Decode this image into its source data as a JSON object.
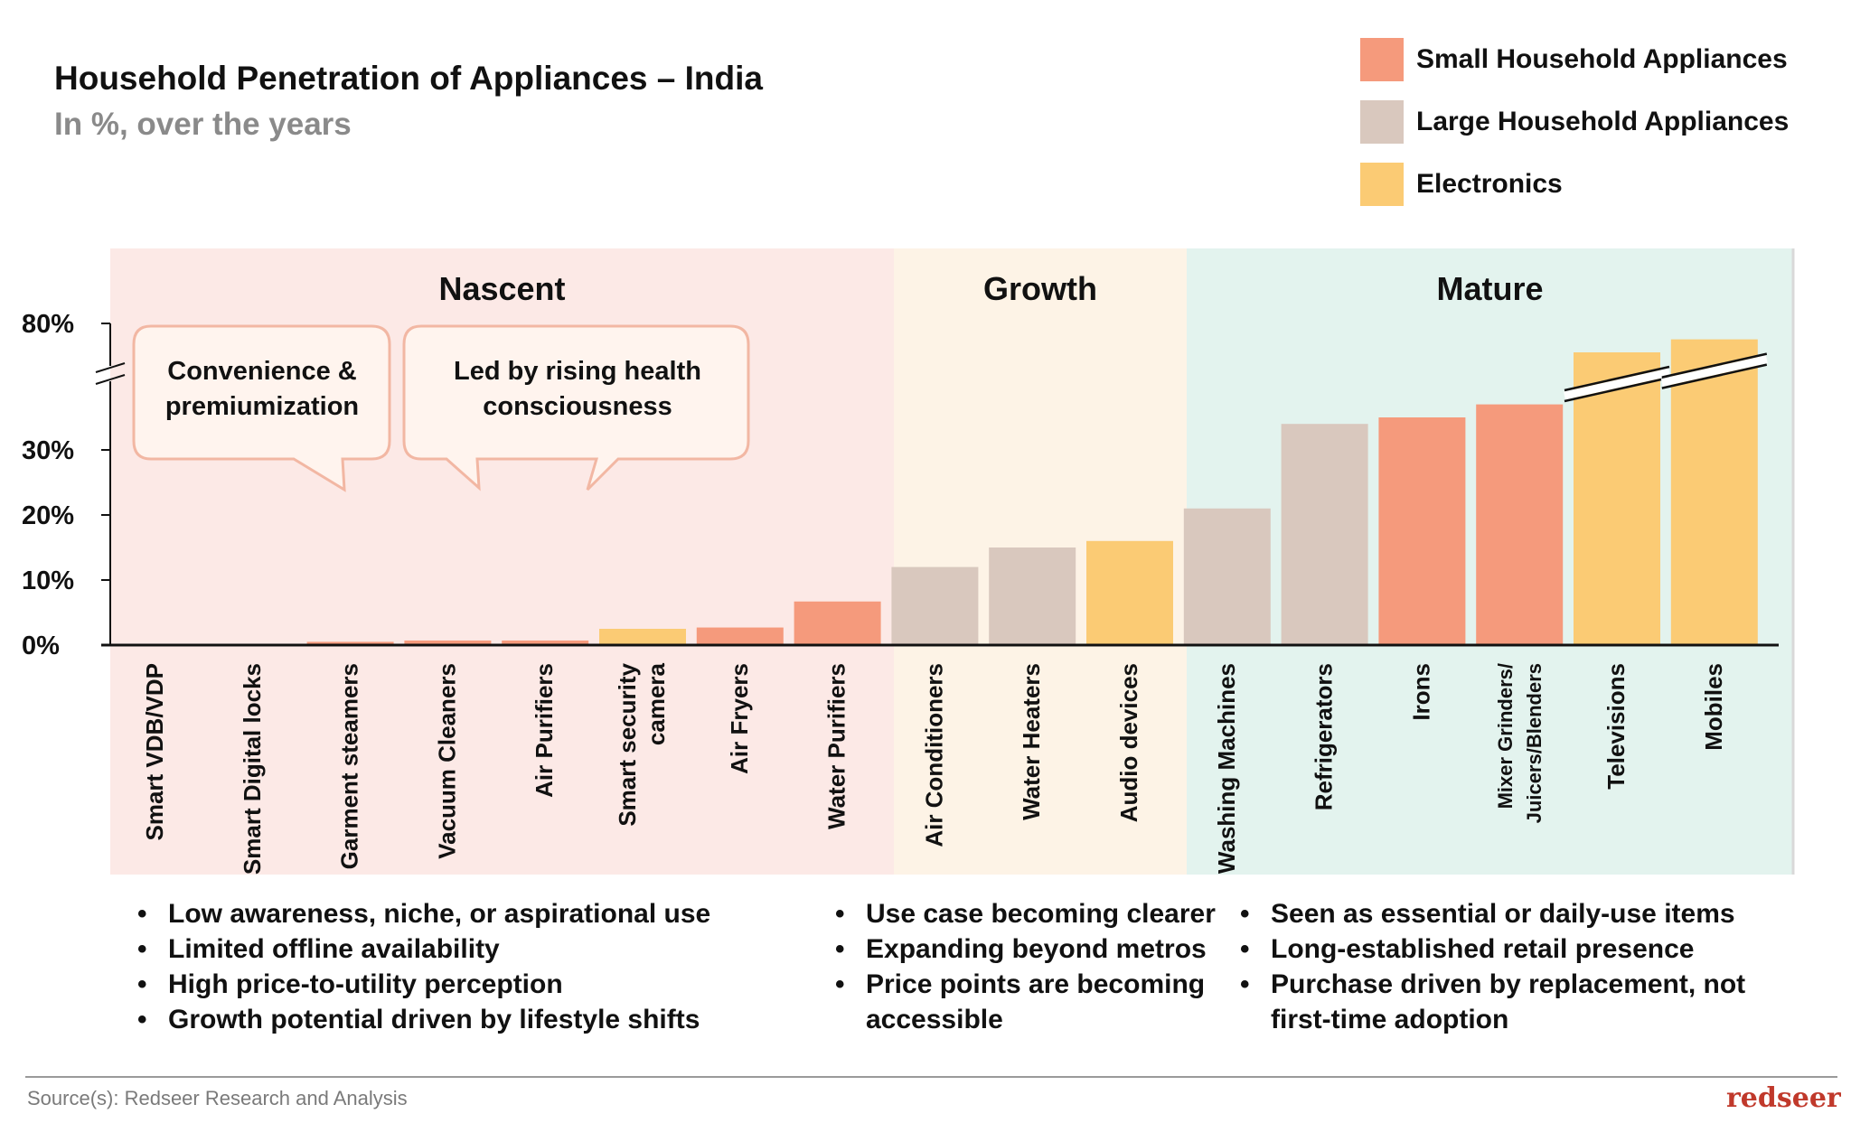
{
  "header": {
    "title": "Household Penetration of Appliances – India",
    "subtitle": "In %, over the years"
  },
  "legend": [
    {
      "label": "Small Household Appliances",
      "color": "#F59A7C"
    },
    {
      "label": "Large Household Appliances",
      "color": "#D9C8BE"
    },
    {
      "label": "Electronics",
      "color": "#FBCB74"
    }
  ],
  "chart_data": {
    "type": "bar",
    "y_axis_ticks": [
      "0%",
      "10%",
      "20%",
      "30%",
      "80%"
    ],
    "y_axis_break": "between 30% and 80%",
    "phases": [
      {
        "label": "Nascent",
        "bg": "#FCE9E6"
      },
      {
        "label": "Growth",
        "bg": "#FDF3E6"
      },
      {
        "label": "Mature",
        "bg": "#E3F3EE"
      }
    ],
    "categories": [
      "Smart VDB/VDP",
      "Smart Digital locks",
      "Garment steamers",
      "Vacuum Cleaners",
      "Air Purifiers",
      "Smart security camera",
      "Air Fryers",
      "Water Purifiers",
      "Air Conditioners",
      "Water Heaters",
      "Audio devices",
      "Washing Machines",
      "Refrigerators",
      "Irons",
      "Mixer Grinders/ Juicers/Blenders",
      "Televisions",
      "Mobiles"
    ],
    "bars": [
      {
        "category": "Smart VDB/VDP",
        "value": 0,
        "group": "Small Household Appliances"
      },
      {
        "category": "Smart Digital locks",
        "value": 0,
        "group": "Small Household Appliances"
      },
      {
        "category": "Garment steamers",
        "value": 0.5,
        "group": "Small Household Appliances"
      },
      {
        "category": "Vacuum Cleaners",
        "value": 0.7,
        "group": "Small Household Appliances"
      },
      {
        "category": "Air Purifiers",
        "value": 0.7,
        "group": "Small Household Appliances"
      },
      {
        "category": "Smart security camera",
        "value": 2.5,
        "group": "Electronics"
      },
      {
        "category": "Air Fryers",
        "value": 2.7,
        "group": "Small Household Appliances"
      },
      {
        "category": "Water Purifiers",
        "value": 6.7,
        "group": "Small Household Appliances"
      },
      {
        "category": "Air Conditioners",
        "value": 12,
        "group": "Large Household Appliances"
      },
      {
        "category": "Water Heaters",
        "value": 15,
        "group": "Large Household Appliances"
      },
      {
        "category": "Audio devices",
        "value": 16,
        "group": "Electronics"
      },
      {
        "category": "Washing Machines",
        "value": 21,
        "group": "Large Household Appliances"
      },
      {
        "category": "Refrigerators",
        "value": 34,
        "group": "Large Household Appliances"
      },
      {
        "category": "Irons",
        "value": 35,
        "group": "Small Household Appliances"
      },
      {
        "category": "Mixer Grinders/ Juicers/Blenders",
        "value": 37,
        "group": "Small Household Appliances"
      },
      {
        "category": "Televisions",
        "value": 45,
        "group": "Electronics",
        "broken": true
      },
      {
        "category": "Mobiles",
        "value": 47,
        "group": "Electronics",
        "broken": true
      }
    ]
  },
  "callouts": [
    {
      "text_line1": "Convenience &",
      "text_line2": "premiumization"
    },
    {
      "text_line1": "Led by rising health",
      "text_line2": "consciousness"
    }
  ],
  "notes": {
    "nascent": [
      "Low awareness, niche, or aspirational use",
      "Limited offline availability",
      "High price-to-utility perception",
      "Growth potential driven by lifestyle shifts"
    ],
    "growth": [
      "Use case becoming clearer",
      "Expanding beyond metros",
      "Price points are becoming",
      "accessible"
    ],
    "mature": [
      "Seen as essential or daily-use items",
      "Long-established retail presence",
      "Purchase driven by replacement, not",
      "first-time adoption"
    ]
  },
  "footer": {
    "source": "Source(s): Redseer Research and Analysis",
    "brand": "redseer"
  }
}
